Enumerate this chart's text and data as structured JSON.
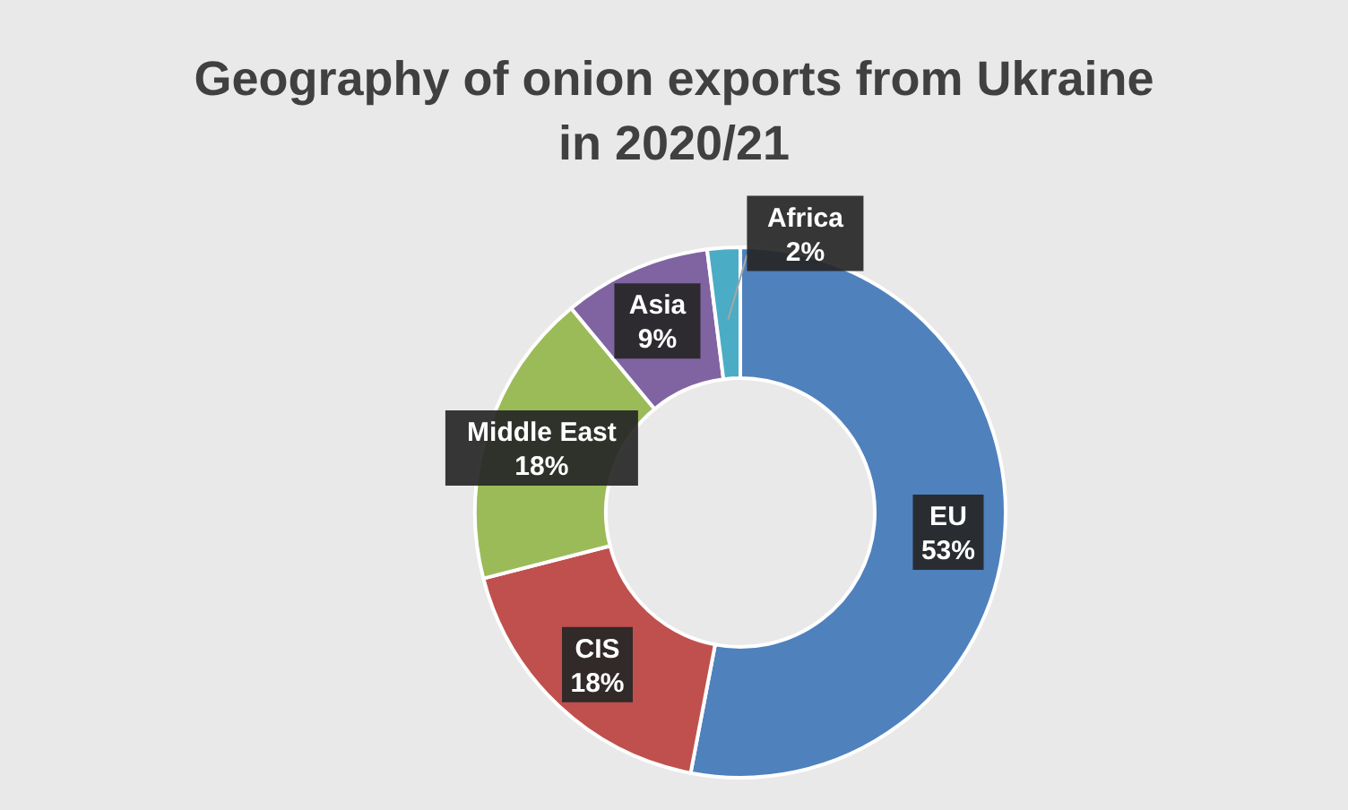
{
  "chart_data": {
    "type": "donut",
    "title": "Geography of onion exports from Ukraine in 2020/21",
    "categories": [
      "EU",
      "CIS",
      "Middle East",
      "Asia",
      "Africa"
    ],
    "values": [
      53,
      18,
      18,
      9,
      2
    ],
    "value_labels": [
      "53%",
      "18%",
      "18%",
      "9%",
      "2%"
    ],
    "colors": [
      "#4f81bd",
      "#c0504d",
      "#9bbb59",
      "#8064a2",
      "#4bacc6"
    ],
    "legend": false
  }
}
